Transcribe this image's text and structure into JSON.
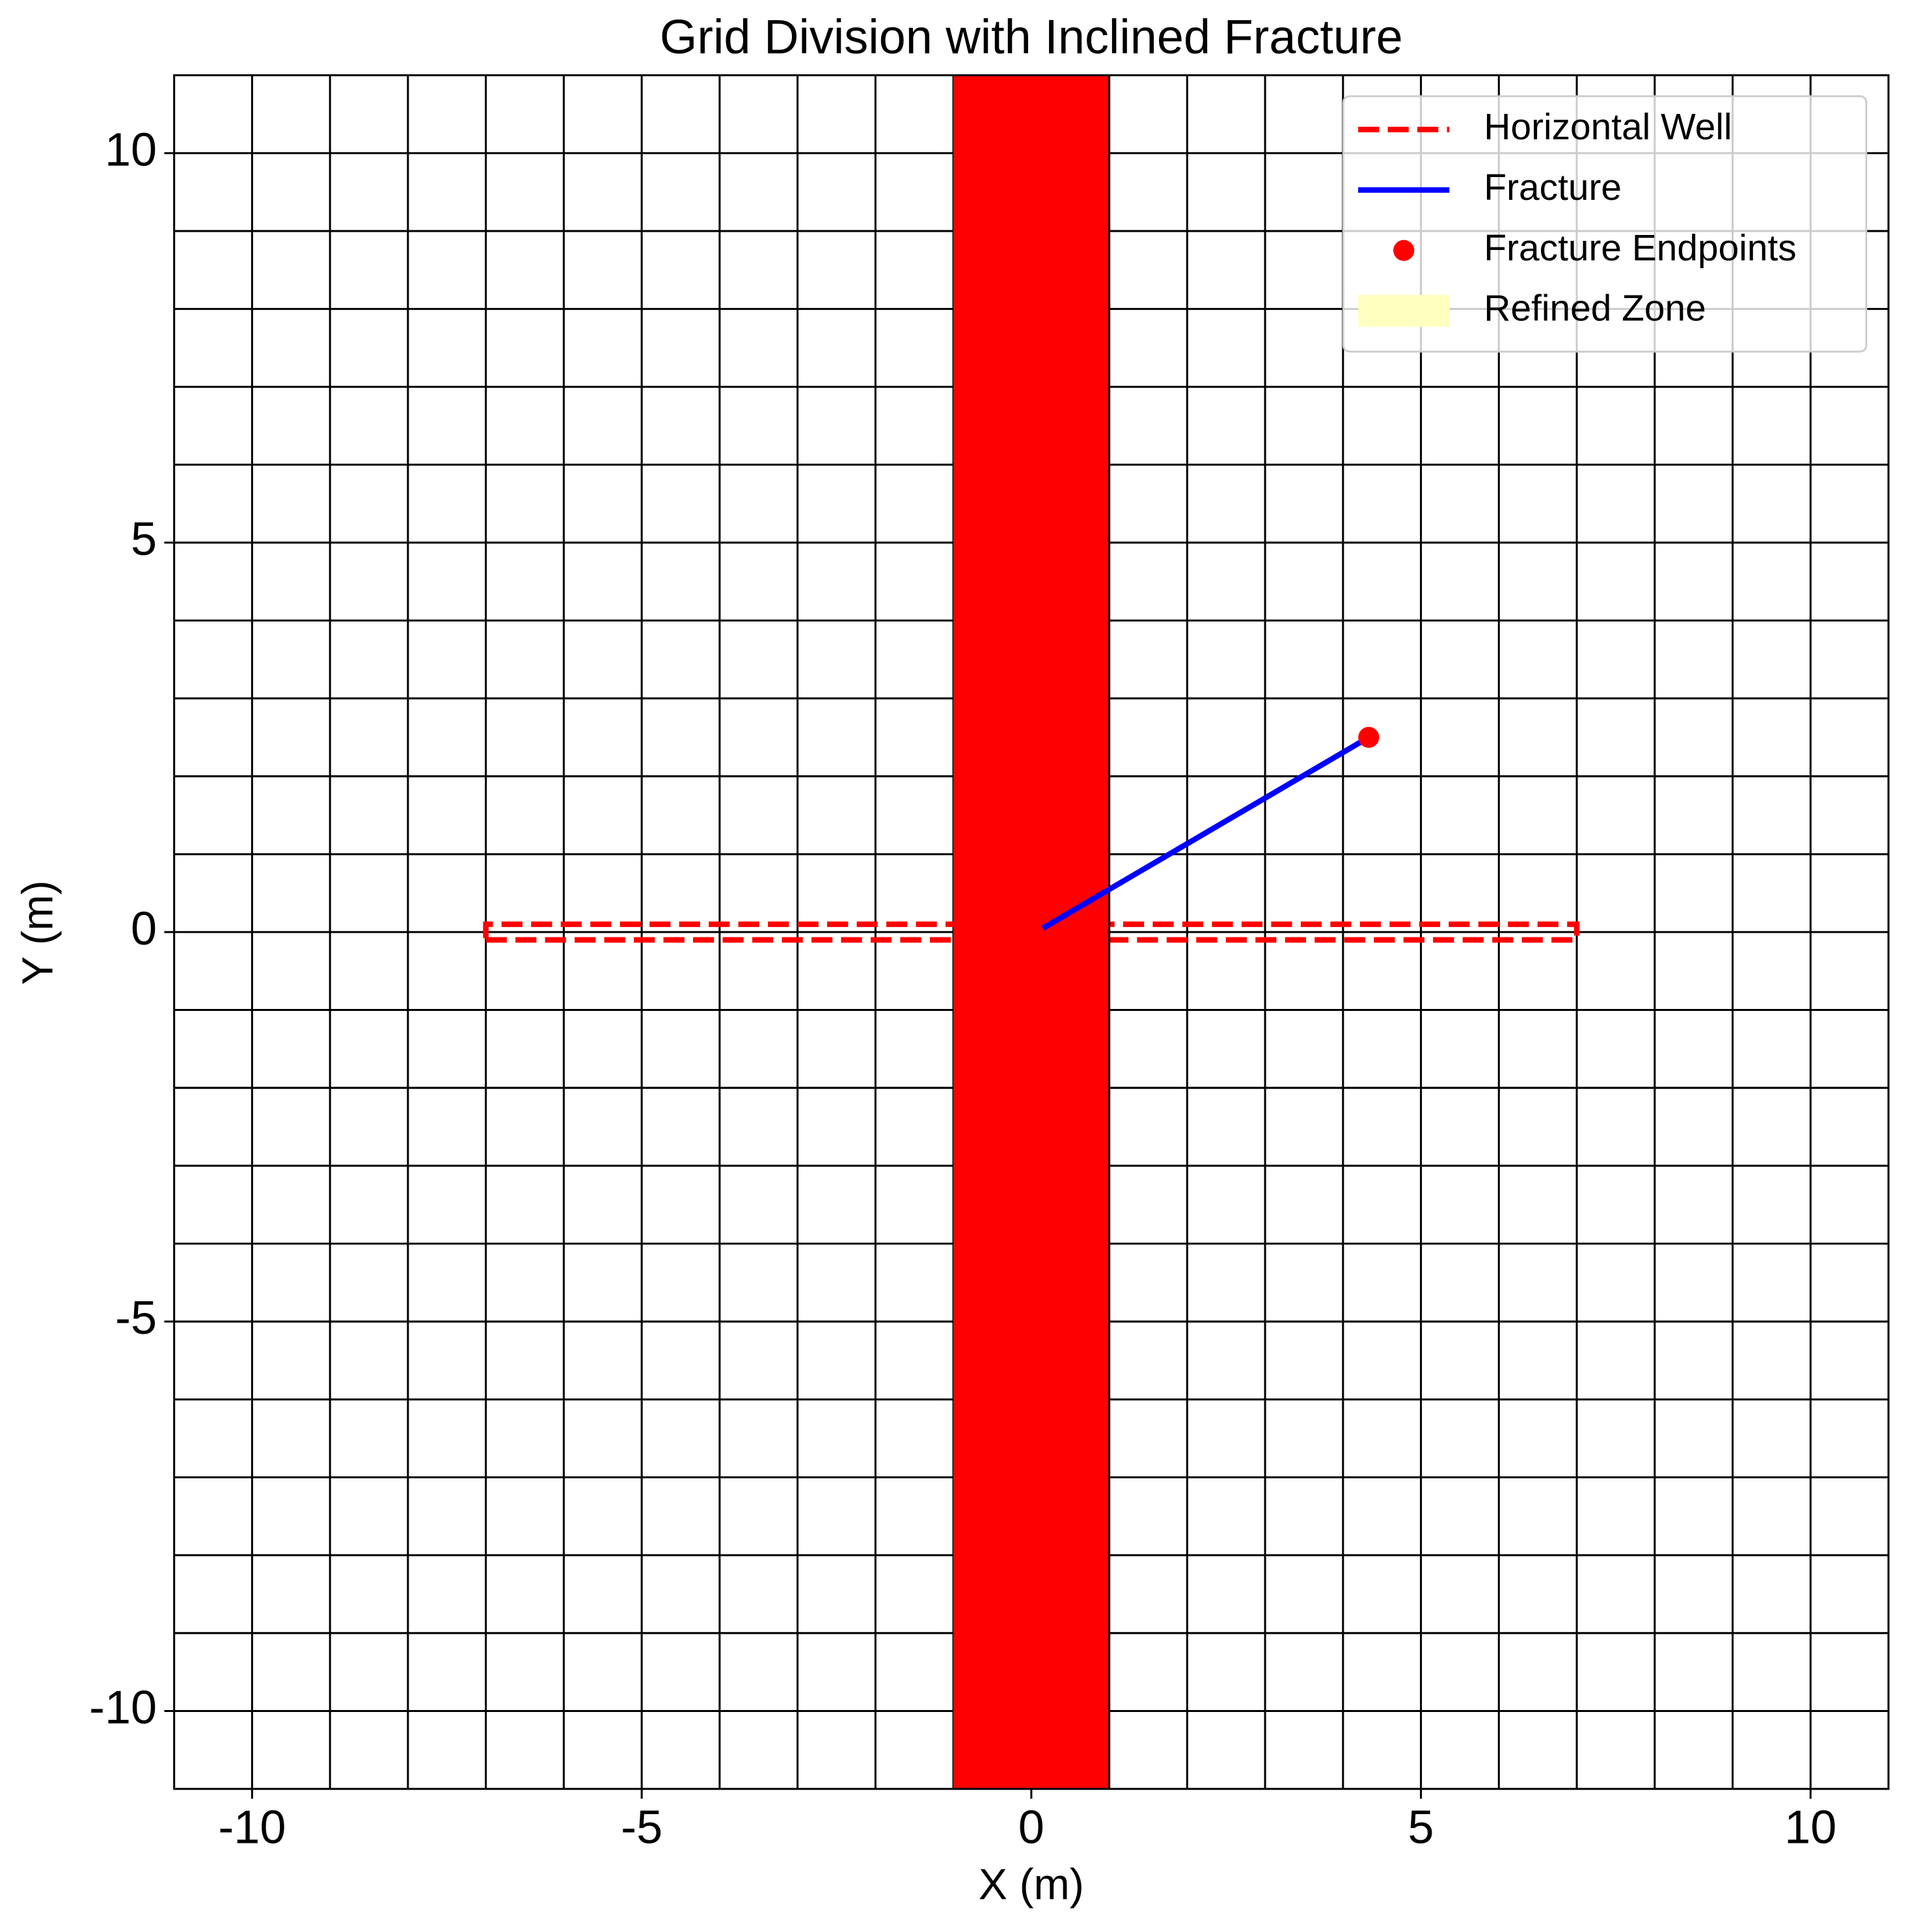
{
  "chart_data": {
    "type": "grid",
    "title": "Grid Division with Inclined Fracture",
    "xlabel": "X (m)",
    "ylabel": "Y (m)",
    "xlim": [
      -11,
      11
    ],
    "ylim": [
      -11,
      11
    ],
    "xticks": [
      -10,
      -5,
      0,
      5,
      10
    ],
    "yticks": [
      -10,
      -5,
      0,
      5,
      10
    ],
    "grid_x": [
      -10,
      -9,
      -8,
      -7,
      -6,
      -5,
      -4,
      -3,
      -2,
      -1,
      0,
      1,
      2,
      3,
      4,
      5,
      6,
      7,
      8,
      9,
      10
    ],
    "grid_y": [
      -10,
      -9,
      -8,
      -7,
      -6,
      -5,
      -4,
      -3,
      -2,
      -1,
      0,
      1,
      2,
      3,
      4,
      5,
      6,
      7,
      8,
      9,
      10
    ],
    "band": {
      "x": [
        -1,
        1
      ],
      "color": "#ff0000"
    },
    "legend": "upper right",
    "series": [
      {
        "name": "Horizontal Well",
        "kind": "line",
        "dashed": true,
        "color": "#ff0000",
        "x": [
          -7,
          7,
          7,
          -7,
          -7
        ],
        "y": [
          -0.1,
          -0.1,
          0.1,
          0.1,
          -0.1
        ]
      },
      {
        "name": "Fracture",
        "kind": "line",
        "dashed": false,
        "color": "#0000ff",
        "x": [
          0.15,
          4.33
        ],
        "y": [
          0.05,
          2.5
        ]
      },
      {
        "name": "Fracture Endpoints",
        "kind": "scatter",
        "color": "#ff0000",
        "x": [
          4.33
        ],
        "y": [
          2.5
        ]
      },
      {
        "name": "Refined Zone",
        "kind": "patch",
        "color": "#ffffc0"
      }
    ]
  }
}
